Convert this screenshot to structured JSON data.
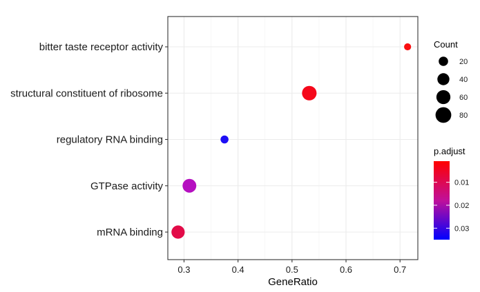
{
  "chart_data": {
    "type": "scatter",
    "xlabel": "GeneRatio",
    "x_ticks": [
      0.3,
      0.4,
      0.5,
      0.6,
      0.7
    ],
    "x_tick_labels": [
      "0.3",
      "0.4",
      "0.5",
      "0.6",
      "0.7"
    ],
    "xlim": [
      0.27,
      0.733
    ],
    "categories": [
      "bitter taste receptor activity",
      "structural constituent of ribosome",
      "regulatory RNA binding",
      "GTPase activity",
      "mRNA binding"
    ],
    "points": [
      {
        "category": "bitter taste receptor activity",
        "x": 0.714,
        "count": 8,
        "color": "#fa0f10"
      },
      {
        "category": "structural constituent of ribosome",
        "x": 0.532,
        "count": 66,
        "color": "#f5081a"
      },
      {
        "category": "regulatory RNA binding",
        "x": 0.375,
        "count": 12,
        "color": "#1e0ff5"
      },
      {
        "category": "GTPase activity",
        "x": 0.31,
        "count": 57,
        "color": "#b510c0"
      },
      {
        "category": "mRNA binding",
        "x": 0.289,
        "count": 52,
        "color": "#e20b48"
      }
    ],
    "grid": true,
    "legend_position": "right",
    "size_legend": {
      "title": "Count",
      "values": [
        20,
        40,
        60,
        80
      ],
      "labels": [
        "20",
        "40",
        "60",
        "80"
      ]
    },
    "color_legend": {
      "title": "p.adjust",
      "ticks": [
        0.01,
        0.02,
        0.03
      ],
      "tick_labels": [
        "0.01",
        "0.02",
        "0.03"
      ],
      "range": [
        0.0008,
        0.035
      ],
      "colors": [
        "#ff0000",
        "#0000ff"
      ]
    }
  }
}
